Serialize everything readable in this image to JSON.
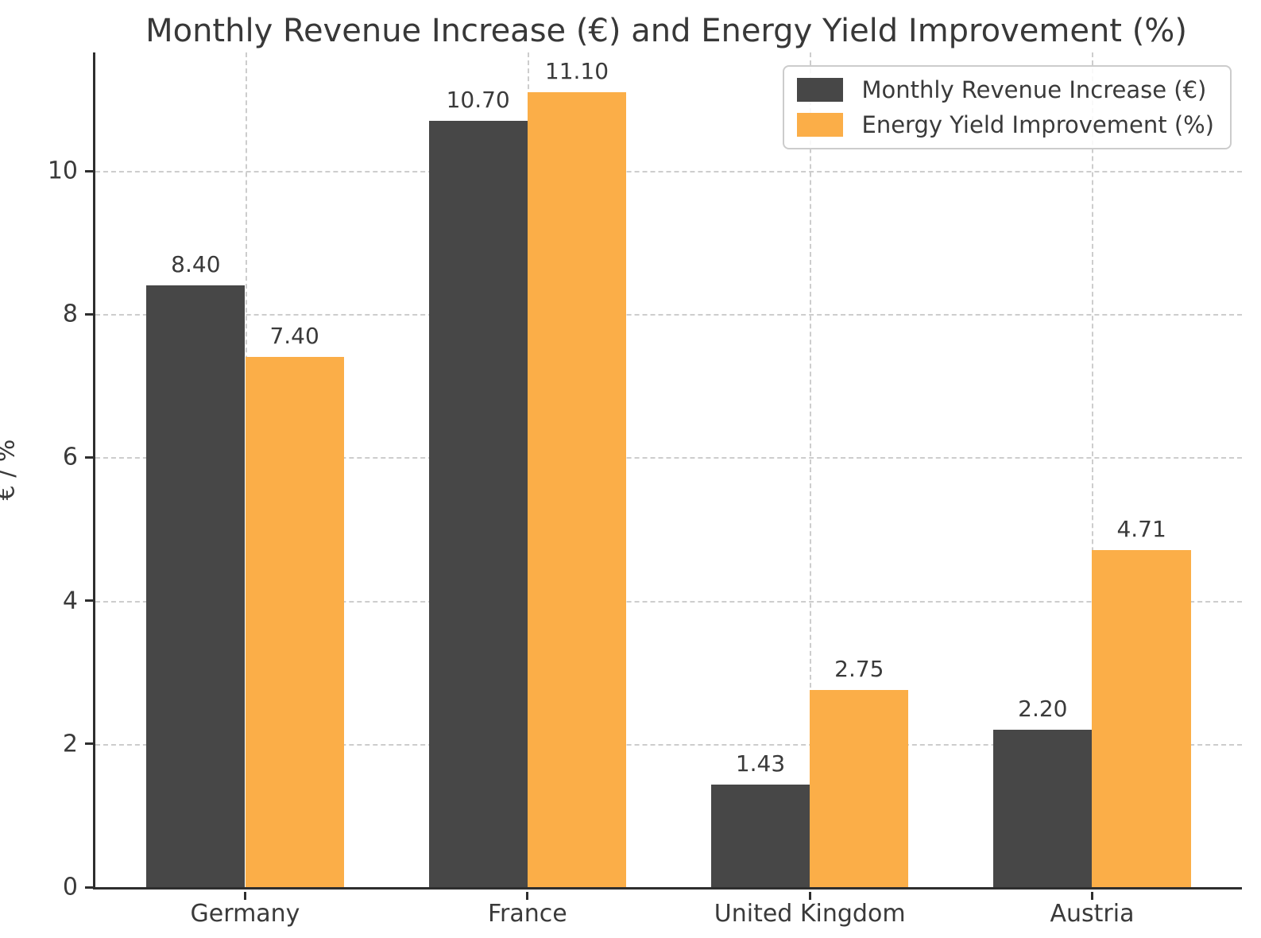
{
  "chart_data": {
    "type": "bar",
    "title": "Monthly Revenue Increase (€) and Energy Yield Improvement (%)",
    "categories": [
      "Germany",
      "France",
      "United Kingdom",
      "Austria"
    ],
    "series": [
      {
        "name": "Monthly Revenue Increase (€)",
        "color": "#474747",
        "values": [
          8.4,
          10.7,
          1.43,
          2.2
        ]
      },
      {
        "name": "Energy Yield Improvement (%)",
        "color": "#FBAE48",
        "values": [
          7.4,
          11.1,
          2.75,
          4.71
        ]
      }
    ],
    "value_label_decimals": 2,
    "xlabel": "",
    "ylabel": "€ / %",
    "ylim": [
      0,
      11.655
    ],
    "yticks": [
      0,
      2,
      4,
      6,
      8,
      10
    ],
    "grid": "dashed, horizontal at yticks and vertical at category centers",
    "legend_position": "upper right",
    "bar_group_width_fraction": 0.7,
    "colors": {
      "axis": "#2e2e2e",
      "grid": "#cdcdcd",
      "text": "#3a3a3a",
      "background": "#ffffff"
    }
  }
}
